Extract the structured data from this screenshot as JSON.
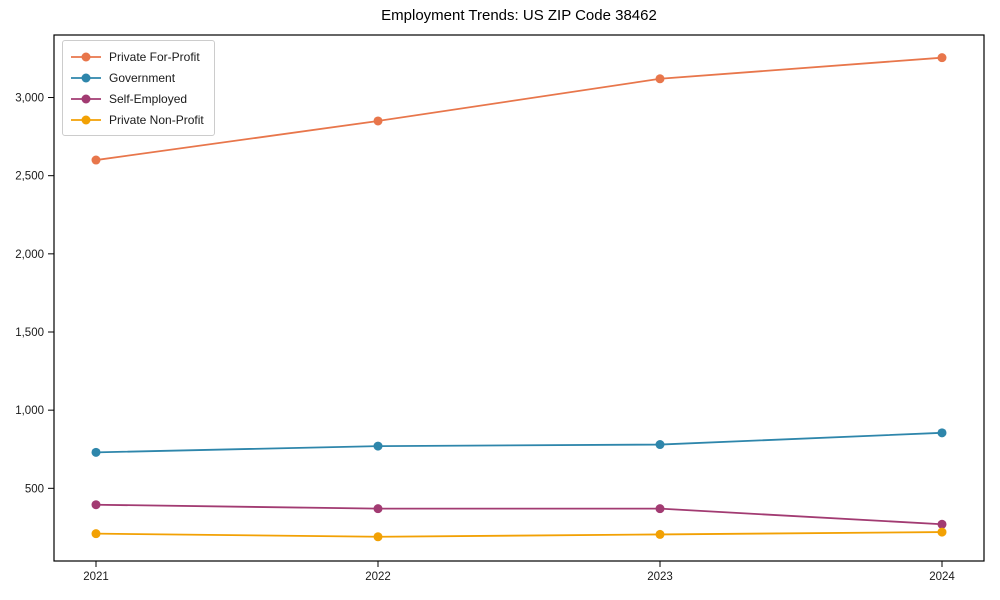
{
  "chart_data": {
    "type": "line",
    "title": "Employment Trends: US ZIP Code 38462",
    "xlabel": "",
    "ylabel": "",
    "categories": [
      "2021",
      "2022",
      "2023",
      "2024"
    ],
    "series": [
      {
        "name": "Private For-Profit",
        "color": "#E8764B",
        "values": [
          2600,
          2850,
          3120,
          3255
        ]
      },
      {
        "name": "Government",
        "color": "#2E86AB",
        "values": [
          730,
          770,
          780,
          855
        ]
      },
      {
        "name": "Self-Employed",
        "color": "#A23B72",
        "values": [
          395,
          370,
          370,
          270
        ]
      },
      {
        "name": "Private Non-Profit",
        "color": "#F2A104",
        "values": [
          210,
          190,
          205,
          220
        ]
      }
    ],
    "y_ticks": [
      {
        "value": 500,
        "label": "500"
      },
      {
        "value": 1000,
        "label": "1,000"
      },
      {
        "value": 1500,
        "label": "1,500"
      },
      {
        "value": 2000,
        "label": "2,000"
      },
      {
        "value": 2500,
        "label": "2,500"
      },
      {
        "value": 3000,
        "label": "3,000"
      }
    ],
    "ylim": [
      35,
      3400
    ],
    "grid": false,
    "legend_position": "upper-left",
    "marker": "circle",
    "spine_color": "#000000"
  }
}
